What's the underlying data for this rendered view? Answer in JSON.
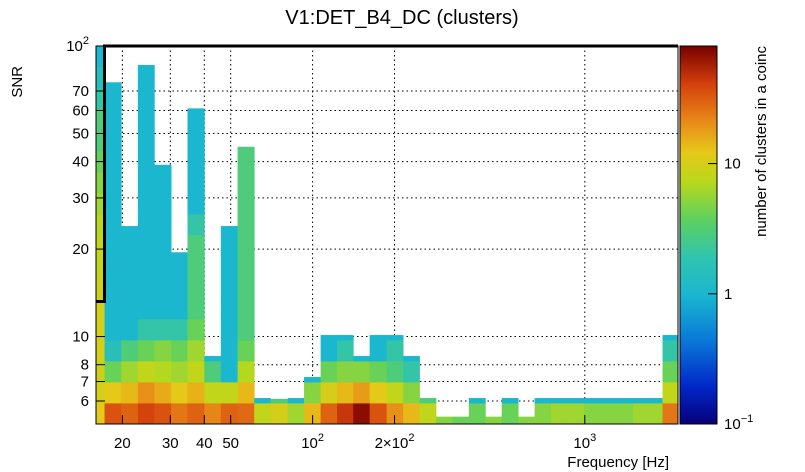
{
  "chart_data": {
    "type": "heatmap",
    "title": "V1:DET_B4_DC (clusters)",
    "xlabel": "Frequency [Hz]",
    "ylabel": "SNR",
    "zlabel": "number of clusters in a coinc",
    "x_scale": "log",
    "y_scale": "log",
    "z_scale": "log",
    "xlim": [
      16,
      2200
    ],
    "ylim": [
      5,
      100
    ],
    "zlim": [
      0.1,
      80
    ],
    "grid": true,
    "x_ticks": [
      {
        "value": 20,
        "label": "20"
      },
      {
        "value": 30,
        "label": "30"
      },
      {
        "value": 40,
        "label": "40"
      },
      {
        "value": 50,
        "label": "50"
      },
      {
        "value": 100,
        "label": "10",
        "sup": "2"
      },
      {
        "value": 200,
        "label": "2×10",
        "sup": "2"
      },
      {
        "value": 1000,
        "label": "10",
        "sup": "3"
      }
    ],
    "y_ticks": [
      {
        "value": 6,
        "label": "6"
      },
      {
        "value": 7,
        "label": "7"
      },
      {
        "value": 8,
        "label": "8"
      },
      {
        "value": 10,
        "label": "10"
      },
      {
        "value": 20,
        "label": "20"
      },
      {
        "value": 30,
        "label": "30"
      },
      {
        "value": 40,
        "label": "40"
      },
      {
        "value": 50,
        "label": "50"
      },
      {
        "value": 60,
        "label": "60"
      },
      {
        "value": 70,
        "label": "70"
      },
      {
        "value": 100,
        "label": "10",
        "sup": "2"
      }
    ],
    "z_ticks": [
      {
        "value": 0.1,
        "label": "10",
        "sup": "−1"
      },
      {
        "value": 1,
        "label": "1"
      },
      {
        "value": 10,
        "label": "10"
      }
    ],
    "threshold_line": {
      "points": [
        [
          16,
          13.2
        ],
        [
          17.2,
          13.2
        ],
        [
          17.2,
          100
        ],
        [
          2200,
          100
        ]
      ]
    },
    "columns": [
      {
        "x0": 16,
        "x1": 17.2,
        "ymax": 100,
        "counts": [
          12,
          10,
          9,
          10,
          10,
          10,
          9,
          8,
          8,
          7,
          6,
          5,
          4,
          3,
          3,
          2,
          1.5,
          1
        ]
      },
      {
        "x0": 17.2,
        "x1": 19.8,
        "ymax": 75,
        "counts": [
          35,
          12,
          4,
          1.5,
          1,
          1,
          1,
          1,
          1,
          1,
          1
        ]
      },
      {
        "x0": 19.8,
        "x1": 22.8,
        "ymax": 24,
        "counts": [
          30,
          14,
          6,
          3,
          1,
          1,
          1,
          1
        ]
      },
      {
        "x0": 22.8,
        "x1": 26.2,
        "ymax": 86,
        "counts": [
          40,
          20,
          8,
          4,
          2,
          1,
          1,
          1,
          1,
          1,
          1,
          1
        ]
      },
      {
        "x0": 26.2,
        "x1": 30.2,
        "ymax": 39,
        "counts": [
          35,
          16,
          7,
          5,
          2,
          1,
          1,
          1,
          1
        ]
      },
      {
        "x0": 30.2,
        "x1": 34.7,
        "ymax": 19.5,
        "counts": [
          25,
          12,
          6,
          4,
          2,
          1,
          1
        ]
      },
      {
        "x0": 34.7,
        "x1": 40,
        "ymax": 61,
        "counts": [
          30,
          15,
          8,
          6,
          4,
          3,
          3,
          3,
          3,
          2,
          1
        ]
      },
      {
        "x0": 40,
        "x1": 46,
        "ymax": 8,
        "counts": [
          22,
          8,
          3,
          1
        ]
      },
      {
        "x0": 46,
        "x1": 53,
        "ymax": 24,
        "counts": [
          30,
          8,
          1,
          1,
          1,
          1,
          1
        ]
      },
      {
        "x0": 53,
        "x1": 61,
        "ymax": 45,
        "counts": [
          28,
          14,
          7,
          4,
          3,
          3,
          3,
          3,
          3,
          3
        ]
      },
      {
        "x0": 61,
        "x1": 70,
        "ymax": 5.6,
        "counts": [
          8,
          1
        ]
      },
      {
        "x0": 70,
        "x1": 81,
        "ymax": 6.1,
        "counts": [
          10,
          3
        ]
      },
      {
        "x0": 81,
        "x1": 93,
        "ymax": 5.6,
        "counts": [
          6,
          1
        ]
      },
      {
        "x0": 93,
        "x1": 107,
        "ymax": 6.7,
        "counts": [
          14,
          5,
          1
        ]
      },
      {
        "x0": 107,
        "x1": 123,
        "ymax": 8.7,
        "counts": [
          30,
          10,
          4,
          1,
          1
        ]
      },
      {
        "x0": 123,
        "x1": 141,
        "ymax": 9.3,
        "counts": [
          45,
          14,
          5,
          2,
          1
        ]
      },
      {
        "x0": 141,
        "x1": 162,
        "ymax": 8.1,
        "counts": [
          70,
          18,
          5,
          1
        ]
      },
      {
        "x0": 162,
        "x1": 187,
        "ymax": 8.7,
        "counts": [
          35,
          12,
          4,
          1,
          1
        ]
      },
      {
        "x0": 187,
        "x1": 215,
        "ymax": 9.3,
        "counts": [
          20,
          8,
          3,
          2,
          1
        ]
      },
      {
        "x0": 215,
        "x1": 247,
        "ymax": 7.1,
        "counts": [
          14,
          5,
          2,
          1
        ]
      },
      {
        "x0": 247,
        "x1": 284,
        "ymax": 5.6,
        "counts": [
          8,
          3
        ]
      },
      {
        "x0": 284,
        "x1": 326,
        "ymax": 5.3,
        "counts": [
          5
        ]
      },
      {
        "x0": 326,
        "x1": 375,
        "ymax": 5.3,
        "counts": [
          4
        ]
      },
      {
        "x0": 375,
        "x1": 431,
        "ymax": 5.6,
        "counts": [
          4,
          1
        ]
      },
      {
        "x0": 431,
        "x1": 495,
        "ymax": 5.3,
        "counts": [
          5
        ]
      },
      {
        "x0": 495,
        "x1": 569,
        "ymax": 5.6,
        "counts": [
          4,
          1
        ]
      },
      {
        "x0": 569,
        "x1": 654,
        "ymax": 5.3,
        "counts": [
          5
        ]
      },
      {
        "x0": 654,
        "x1": 751,
        "ymax": 5.6,
        "counts": [
          5,
          1
        ]
      },
      {
        "x0": 751,
        "x1": 863,
        "ymax": 5.9,
        "counts": [
          6,
          1
        ]
      },
      {
        "x0": 863,
        "x1": 992,
        "ymax": 5.9,
        "counts": [
          6,
          1
        ]
      },
      {
        "x0": 992,
        "x1": 1140,
        "ymax": 5.6,
        "counts": [
          5,
          1
        ]
      },
      {
        "x0": 1140,
        "x1": 1310,
        "ymax": 5.6,
        "counts": [
          5,
          1
        ]
      },
      {
        "x0": 1310,
        "x1": 1505,
        "ymax": 5.9,
        "counts": [
          5,
          1
        ]
      },
      {
        "x0": 1505,
        "x1": 1930,
        "ymax": 5.9,
        "counts": [
          6,
          1
        ]
      },
      {
        "x0": 1930,
        "x1": 2200,
        "ymax": 9.3,
        "counts": [
          25,
          8,
          4,
          2,
          1
        ]
      }
    ]
  }
}
